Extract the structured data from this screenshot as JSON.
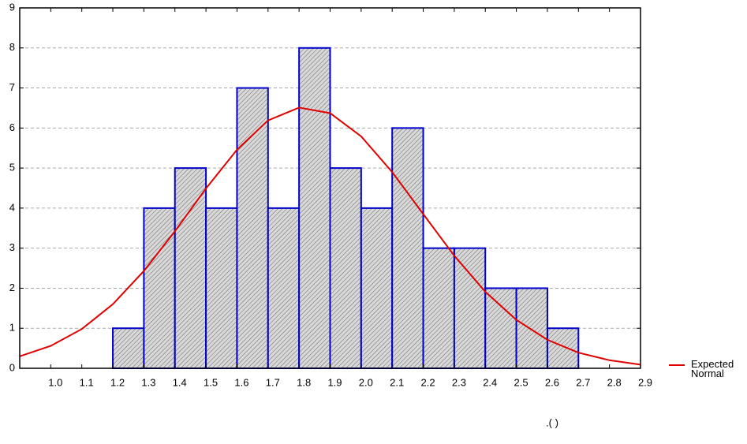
{
  "chart_data": {
    "type": "histogram",
    "bins": [
      1.0,
      1.1,
      1.2,
      1.3,
      1.4,
      1.5,
      1.6,
      1.7,
      1.8,
      1.9,
      2.0,
      2.1,
      2.2,
      2.3,
      2.4,
      2.5,
      2.6,
      2.7,
      2.8
    ],
    "counts": [
      0,
      0,
      1,
      4,
      5,
      4,
      7,
      4,
      8,
      5,
      4,
      6,
      3,
      3,
      2,
      2,
      1,
      0
    ],
    "bar_color": "#c8c8c8",
    "edge_color": "#0000cc",
    "xlim": [
      0.9,
      2.9
    ],
    "xticks": [
      {
        "value": 1.0,
        "label": "1.0"
      },
      1.1,
      1.2,
      1.3,
      1.4,
      1.5,
      1.6,
      1.7,
      1.8,
      1.9,
      {
        "value": 2.0,
        "label": "2.0"
      },
      2.1,
      2.2,
      2.3,
      2.4,
      2.5,
      2.6,
      2.7,
      2.8,
      2.9
    ],
    "ylim": [
      0,
      9
    ],
    "yticks": [
      0,
      1,
      2,
      3,
      4,
      5,
      6,
      7,
      8,
      9
    ],
    "grid": true,
    "curve": {
      "name": "Expected Normal",
      "color": "#e00000",
      "x": [
        0.9,
        1.0,
        1.1,
        1.2,
        1.3,
        1.4,
        1.5,
        1.6,
        1.7,
        1.8,
        1.9,
        2.0,
        2.1,
        2.2,
        2.3,
        2.4,
        2.5,
        2.6,
        2.7,
        2.8,
        2.9
      ],
      "values": [
        0.3,
        0.56,
        0.98,
        1.6,
        2.43,
        3.42,
        4.49,
        5.46,
        6.19,
        6.51,
        6.37,
        5.79,
        4.9,
        3.85,
        2.81,
        1.91,
        1.21,
        0.71,
        0.39,
        0.2,
        0.09
      ]
    },
    "legend": "right",
    "note": ".(      )"
  }
}
